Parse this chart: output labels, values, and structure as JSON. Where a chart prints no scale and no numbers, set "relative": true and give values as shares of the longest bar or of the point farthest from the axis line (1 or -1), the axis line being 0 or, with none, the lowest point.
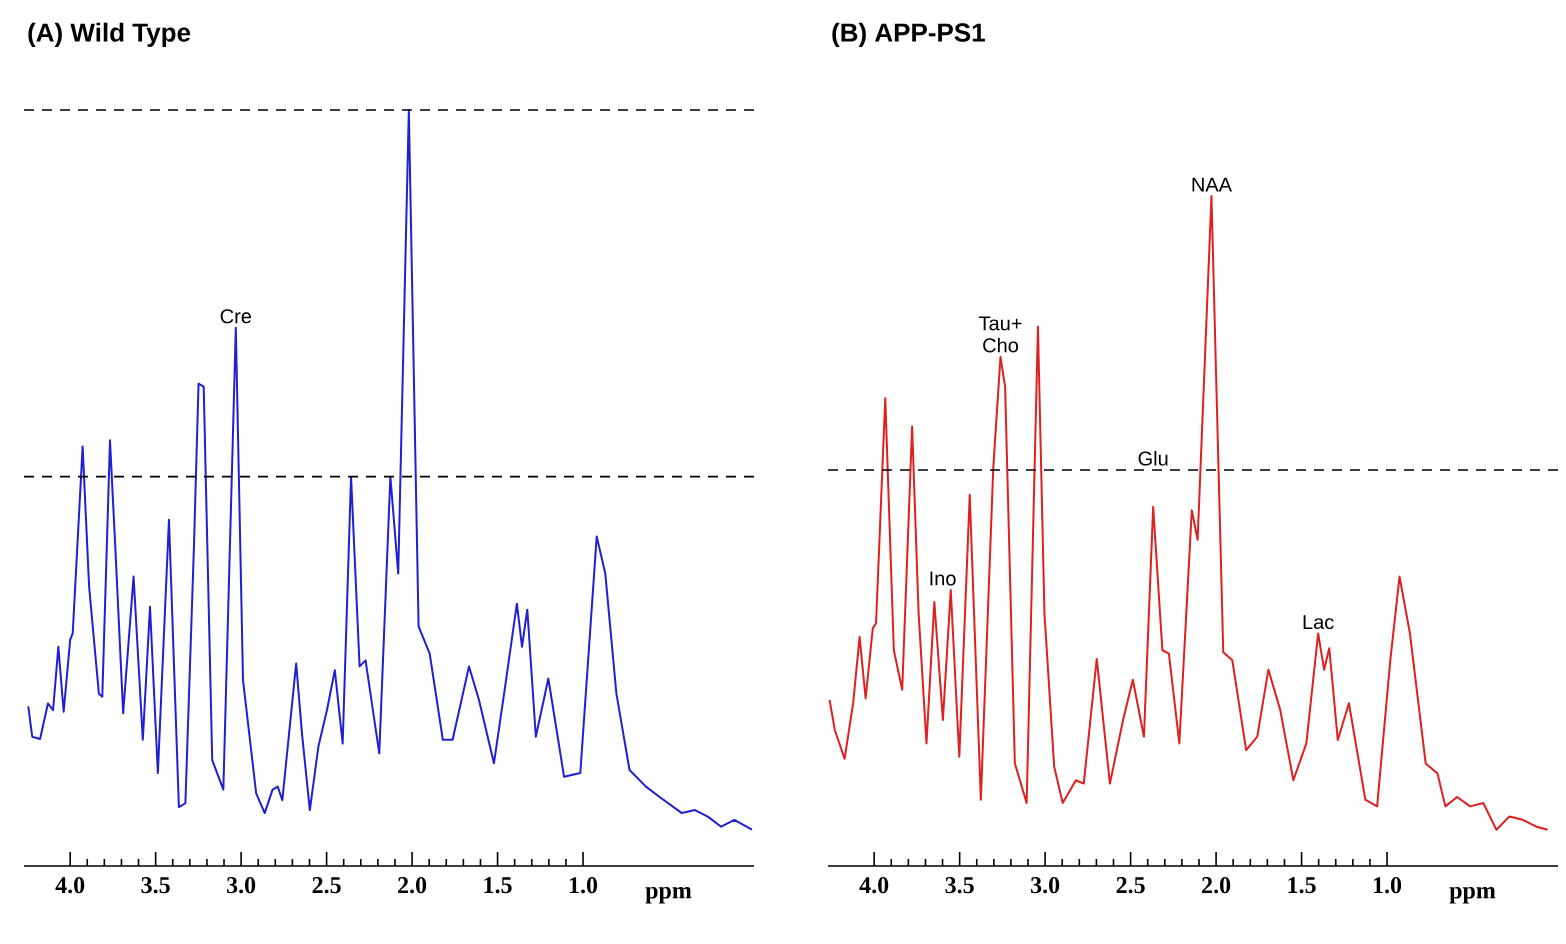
{
  "chart_data": [
    {
      "type": "line",
      "title": "**(A) Wild Type**",
      "xlabel": "**ppm**",
      "relative": true,
      "line_style": "solid",
      "xlim": [
        4.27,
        0
      ],
      "xticks": [
        {
          "value": 4,
          "label": "4.0"
        },
        3.5,
        {
          "value": 3,
          "label": "3.0"
        },
        2.5,
        {
          "value": 2,
          "label": "2.0"
        },
        1.5,
        {
          "value": 1,
          "label": "1.0"
        }
      ],
      "x": [
        4.245,
        4.222,
        4.176,
        4.13,
        4.1,
        4.069,
        4.038,
        4.0,
        3.985,
        3.927,
        3.889,
        3.832,
        3.812,
        3.767,
        3.736,
        3.69,
        3.629,
        3.575,
        3.533,
        3.487,
        3.422,
        3.364,
        3.326,
        3.276,
        3.249,
        3.219,
        3.169,
        3.104,
        3.031,
        2.989,
        2.912,
        2.862,
        2.816,
        2.786,
        2.759,
        2.678,
        2.644,
        2.598,
        2.548,
        2.498,
        2.452,
        2.406,
        2.357,
        2.307,
        2.272,
        2.192,
        2.127,
        2.081,
        2.019,
        1.962,
        1.897,
        1.82,
        1.763,
        1.667,
        1.609,
        1.521,
        1.456,
        1.387,
        1.357,
        1.326,
        1.276,
        1.203,
        1.111,
        1.016,
        0.92,
        0.87,
        0.805,
        0.728,
        0.632,
        0.556,
        0.422,
        0.345,
        0.268,
        0.192,
        0.115,
        0.012
      ],
      "series": [
        {
          "color": "#1f1fd6",
          "values": [
            0.211,
            0.171,
            0.168,
            0.215,
            0.206,
            0.29,
            0.204,
            0.299,
            0.308,
            0.555,
            0.369,
            0.228,
            0.224,
            0.563,
            0.422,
            0.202,
            0.383,
            0.167,
            0.343,
            0.123,
            0.458,
            0.078,
            0.083,
            0.422,
            0.638,
            0.634,
            0.14,
            0.101,
            0.712,
            0.246,
            0.096,
            0.07,
            0.101,
            0.105,
            0.087,
            0.268,
            0.175,
            0.074,
            0.158,
            0.206,
            0.259,
            0.162,
            0.515,
            0.264,
            0.272,
            0.149,
            0.515,
            0.387,
            1.0,
            0.317,
            0.281,
            0.167,
            0.167,
            0.264,
            0.22,
            0.136,
            0.237,
            0.347,
            0.29,
            0.339,
            0.171,
            0.248,
            0.118,
            0.123,
            0.436,
            0.387,
            0.228,
            0.127,
            0.105,
            0.092,
            0.07,
            0.074,
            0.065,
            0.052,
            0.061,
            0.048
          ]
        }
      ],
      "ref_lines": [
        {
          "axis": "y",
          "value": 1.0,
          "color": "#000000",
          "line_style": "dashed"
        },
        {
          "axis": "y",
          "value": 0.515,
          "color": "#000000",
          "line_style": "dashed"
        }
      ],
      "annotations": [
        {
          "text": "Cre",
          "x": 3.031,
          "y": 0.712
        }
      ]
    },
    {
      "type": "line",
      "title": "**(B) APP-PS1**",
      "xlabel": "**ppm**",
      "relative": true,
      "line_style": "solid",
      "xlim": [
        4.27,
        0
      ],
      "xticks": [
        {
          "value": 4,
          "label": "4.0"
        },
        3.5,
        {
          "value": 3,
          "label": "3.0"
        },
        2.5,
        {
          "value": 2,
          "label": "2.0"
        },
        1.5,
        {
          "value": 1,
          "label": "1.0"
        }
      ],
      "x": [
        4.261,
        4.23,
        4.173,
        4.123,
        4.085,
        4.05,
        4.008,
        3.989,
        3.935,
        3.885,
        3.836,
        3.778,
        3.74,
        3.694,
        3.648,
        3.598,
        3.552,
        3.502,
        3.441,
        3.376,
        3.303,
        3.261,
        3.234,
        3.177,
        3.108,
        3.042,
        3.004,
        2.947,
        2.897,
        2.82,
        2.774,
        2.698,
        2.621,
        2.544,
        2.487,
        2.422,
        2.368,
        2.314,
        2.276,
        2.215,
        2.142,
        2.108,
        2.027,
        1.958,
        1.905,
        1.824,
        1.759,
        1.694,
        1.625,
        1.548,
        1.472,
        1.403,
        1.368,
        1.338,
        1.288,
        1.223,
        1.127,
        1.058,
        0.981,
        0.927,
        0.866,
        0.774,
        0.705,
        0.659,
        0.59,
        0.514,
        0.437,
        0.36,
        0.284,
        0.207,
        0.13,
        0.061
      ],
      "series": [
        {
          "color": "#e01f1f",
          "values": [
            0.248,
            0.203,
            0.16,
            0.243,
            0.342,
            0.25,
            0.355,
            0.362,
            0.698,
            0.322,
            0.263,
            0.656,
            0.377,
            0.183,
            0.394,
            0.218,
            0.412,
            0.163,
            0.554,
            0.099,
            0.596,
            0.76,
            0.715,
            0.153,
            0.094,
            0.805,
            0.377,
            0.148,
            0.094,
            0.128,
            0.123,
            0.309,
            0.123,
            0.218,
            0.278,
            0.193,
            0.536,
            0.322,
            0.317,
            0.183,
            0.531,
            0.487,
            1.0,
            0.319,
            0.307,
            0.173,
            0.193,
            0.293,
            0.233,
            0.128,
            0.183,
            0.347,
            0.293,
            0.325,
            0.188,
            0.243,
            0.099,
            0.089,
            0.307,
            0.432,
            0.347,
            0.153,
            0.138,
            0.089,
            0.103,
            0.089,
            0.094,
            0.054,
            0.074,
            0.069,
            0.059,
            0.054
          ]
        }
      ],
      "ref_lines": [
        {
          "axis": "y",
          "value": 0.591,
          "color": "#000000",
          "line_style": "dashed"
        }
      ],
      "annotations": [
        {
          "text": "NAA",
          "x": 2.027,
          "y": 1.0
        },
        {
          "text": "Tau+ Cho",
          "x": 3.261,
          "y": 0.76
        },
        {
          "text": "Glu",
          "x": 2.368,
          "y": 0.591
        },
        {
          "text": "Ino",
          "x": 3.6,
          "y": 0.412
        },
        {
          "text": "Lac",
          "x": 1.403,
          "y": 0.347
        }
      ]
    }
  ]
}
